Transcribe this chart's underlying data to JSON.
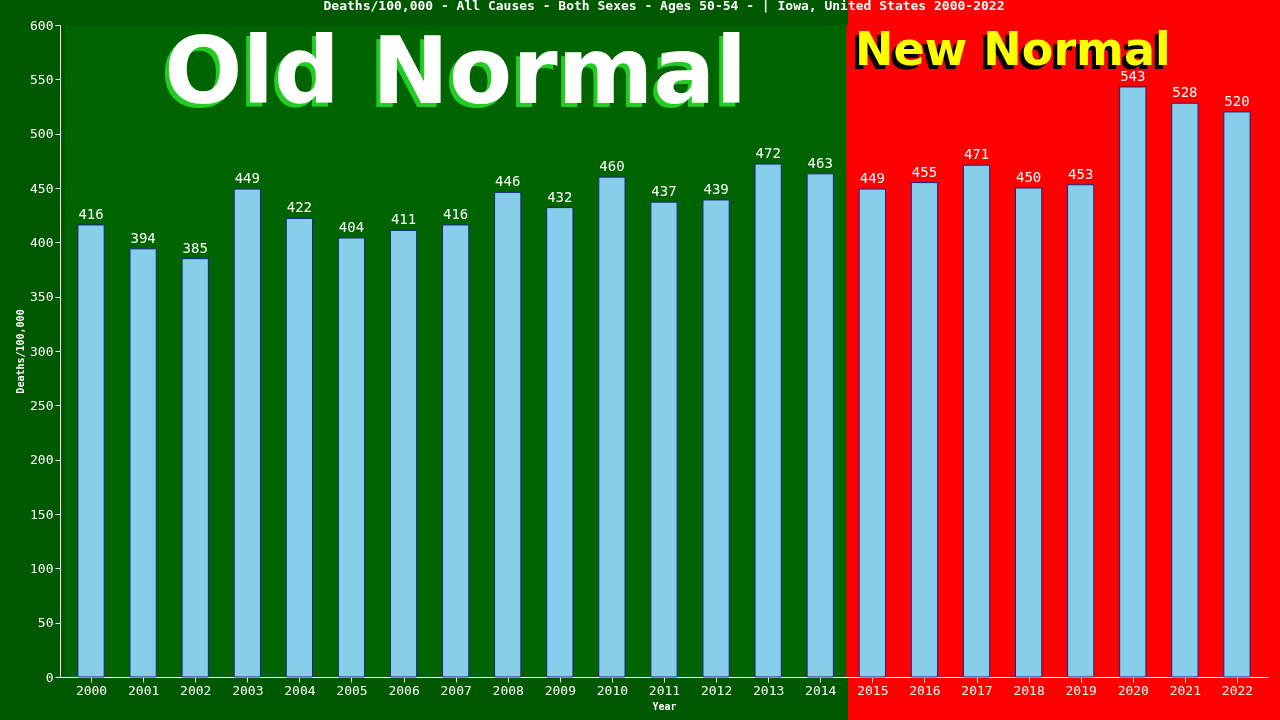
{
  "chart_data": {
    "type": "bar",
    "title": "Deaths/100,000 - All Causes - Both Sexes - Ages 50-54 -  | Iowa, United States 2000-2022",
    "xlabel": "Year",
    "ylabel": "Deaths/100,000",
    "categories": [
      "2000",
      "2001",
      "2002",
      "2003",
      "2004",
      "2005",
      "2006",
      "2007",
      "2008",
      "2009",
      "2010",
      "2011",
      "2012",
      "2013",
      "2014",
      "2015",
      "2016",
      "2017",
      "2018",
      "2019",
      "2020",
      "2021",
      "2022"
    ],
    "values": [
      416,
      394,
      385,
      449,
      422,
      404,
      411,
      416,
      446,
      432,
      460,
      437,
      439,
      472,
      463,
      449,
      455,
      471,
      450,
      453,
      543,
      528,
      520
    ],
    "color": "#87ceeb",
    "data_labels": true,
    "ylim": [
      0,
      600
    ],
    "yticks": [
      0,
      50,
      100,
      150,
      200,
      250,
      300,
      350,
      400,
      450,
      500,
      550,
      600
    ],
    "grid": false,
    "legend": false,
    "bands": [
      {
        "axis": "x",
        "from": "2000",
        "to": "2014",
        "label": "Old Normal",
        "color": "#006400"
      },
      {
        "axis": "x",
        "from": "2015",
        "to": "2022",
        "label": "New Normal",
        "color": "#ff0000"
      }
    ]
  }
}
